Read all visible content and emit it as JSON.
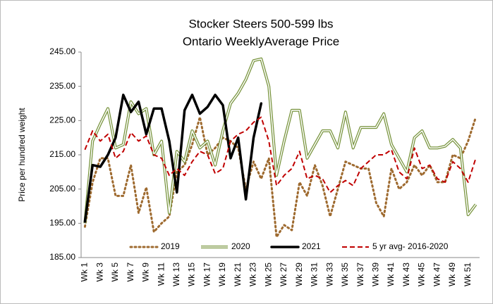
{
  "chart_data": {
    "type": "line",
    "title": "Stocker Steers 500-599 lbs",
    "subtitle": "Ontario WeeklyAverage Price",
    "y_label": "Price per hundred weight",
    "categories": [
      "Wk 1",
      null,
      "Wk 3",
      null,
      "Wk 5",
      null,
      "Wk 7",
      null,
      "Wk 9",
      null,
      "Wk 11",
      null,
      "Wk 13",
      null,
      "Wk 15",
      null,
      "Wk 17",
      null,
      "Wk 19",
      null,
      "Wk 21",
      null,
      "Wk 23",
      null,
      "Wk 25",
      null,
      "Wk 27",
      null,
      "Wk 29",
      null,
      "Wk 31",
      null,
      "Wk 33",
      null,
      "Wk 35",
      null,
      "Wk 37",
      null,
      "Wk 39",
      null,
      "Wk 41",
      null,
      "Wk 43",
      null,
      "Wk 45",
      null,
      "Wk 47",
      null,
      "Wk 49",
      null,
      "Wk 51",
      null
    ],
    "ylim": [
      185,
      245
    ],
    "yticks": [
      {
        "value": 185,
        "label": "185.00"
      },
      {
        "value": 195,
        "label": "195.00"
      },
      {
        "value": 205,
        "label": "205.00"
      },
      {
        "value": 215,
        "label": "215.00"
      },
      {
        "value": 225,
        "label": "225.00"
      },
      {
        "value": 235,
        "label": "235.00"
      },
      {
        "value": 245,
        "label": "245.00"
      }
    ],
    "grid": false,
    "legend": "bottom",
    "series": [
      {
        "name": "2019",
        "color": "#9e6a2f",
        "style": "dotted",
        "values": [
          194,
          207,
          214,
          214,
          203,
          203,
          212,
          198,
          205.5,
          192.5,
          195,
          197,
          210,
          212,
          218,
          226,
          215,
          217,
          220,
          219,
          217,
          205,
          213,
          208,
          214,
          191,
          194.5,
          193,
          207,
          203,
          212,
          206,
          197,
          205,
          213,
          212,
          211,
          211,
          201,
          197,
          211,
          205,
          207,
          212,
          209,
          212,
          207,
          207,
          215,
          214,
          219,
          226
        ]
      },
      {
        "name": "2020",
        "color": "#77933c",
        "style": "double",
        "values": [
          195,
          219,
          224,
          228.5,
          217,
          218,
          230.5,
          227,
          228.5,
          215,
          219,
          198,
          216,
          213,
          222,
          217,
          219,
          212,
          222,
          230,
          233,
          237,
          242.5,
          243,
          235,
          209,
          219,
          228,
          228,
          214,
          218,
          222,
          222,
          217,
          227.5,
          217,
          223,
          223,
          223,
          227,
          218,
          214,
          210,
          220,
          222,
          217,
          217,
          217.5,
          219.5,
          217,
          197.5,
          200.5
        ]
      },
      {
        "name": "2021",
        "color": "#000000",
        "style": "solid",
        "values": [
          195.5,
          212,
          211.5,
          215,
          220,
          232.5,
          227.5,
          230.5,
          221,
          228.5,
          228.5,
          219,
          204,
          228,
          232.5,
          227,
          229,
          232.5,
          229.5,
          214,
          220,
          202,
          220,
          230,
          null,
          null,
          null,
          null,
          null,
          null,
          null,
          null,
          null,
          null,
          null,
          null,
          null,
          null,
          null,
          null,
          null,
          null,
          null,
          null,
          null,
          null,
          null,
          null,
          null,
          null,
          null,
          null
        ]
      },
      {
        "name": "5 yr avg- 2016-2020",
        "color": "#c00000",
        "style": "dashed",
        "values": [
          216.5,
          222,
          219,
          221,
          214,
          216,
          221.5,
          219,
          220.5,
          215,
          214,
          209,
          211,
          209,
          213,
          216,
          215,
          209.5,
          211,
          219,
          221,
          222,
          224.5,
          226,
          219,
          206,
          209,
          211,
          216,
          208,
          209,
          208,
          204,
          206,
          207.5,
          206,
          211,
          213,
          215,
          215,
          216.5,
          210,
          208,
          217,
          211,
          212,
          208,
          207,
          213,
          211,
          207,
          214
        ]
      }
    ]
  }
}
